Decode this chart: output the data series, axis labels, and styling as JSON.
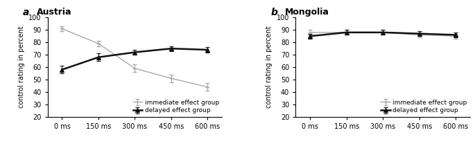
{
  "x_labels": [
    "0 ms",
    "150 ms",
    "300 ms",
    "450 ms",
    "600 ms"
  ],
  "x_values": [
    0,
    1,
    2,
    3,
    4
  ],
  "austria": {
    "immediate_y": [
      91,
      79,
      59,
      51,
      44
    ],
    "immediate_err": [
      2,
      2,
      3,
      3,
      3
    ],
    "delayed_y": [
      58,
      68,
      72,
      75,
      74
    ],
    "delayed_err": [
      3,
      3,
      2,
      2,
      2
    ]
  },
  "mongolia": {
    "immediate_y": [
      88,
      88,
      88,
      86,
      85
    ],
    "immediate_err": [
      2,
      2,
      2,
      2,
      2
    ],
    "delayed_y": [
      85,
      88,
      88,
      87,
      86
    ],
    "delayed_err": [
      2,
      2,
      2,
      2,
      2
    ]
  },
  "ylim": [
    20,
    100
  ],
  "yticks": [
    20,
    30,
    40,
    50,
    60,
    70,
    80,
    90,
    100
  ],
  "ylabel": "control rating in percent",
  "immediate_color": "#aaaaaa",
  "delayed_color": "#111111",
  "legend_immediate": "immediate effect group",
  "legend_delayed": "delayed effect group",
  "panel_a_label": "a",
  "panel_b_label": "b",
  "panel_a_title": "Austria",
  "panel_b_title": "Mongolia"
}
